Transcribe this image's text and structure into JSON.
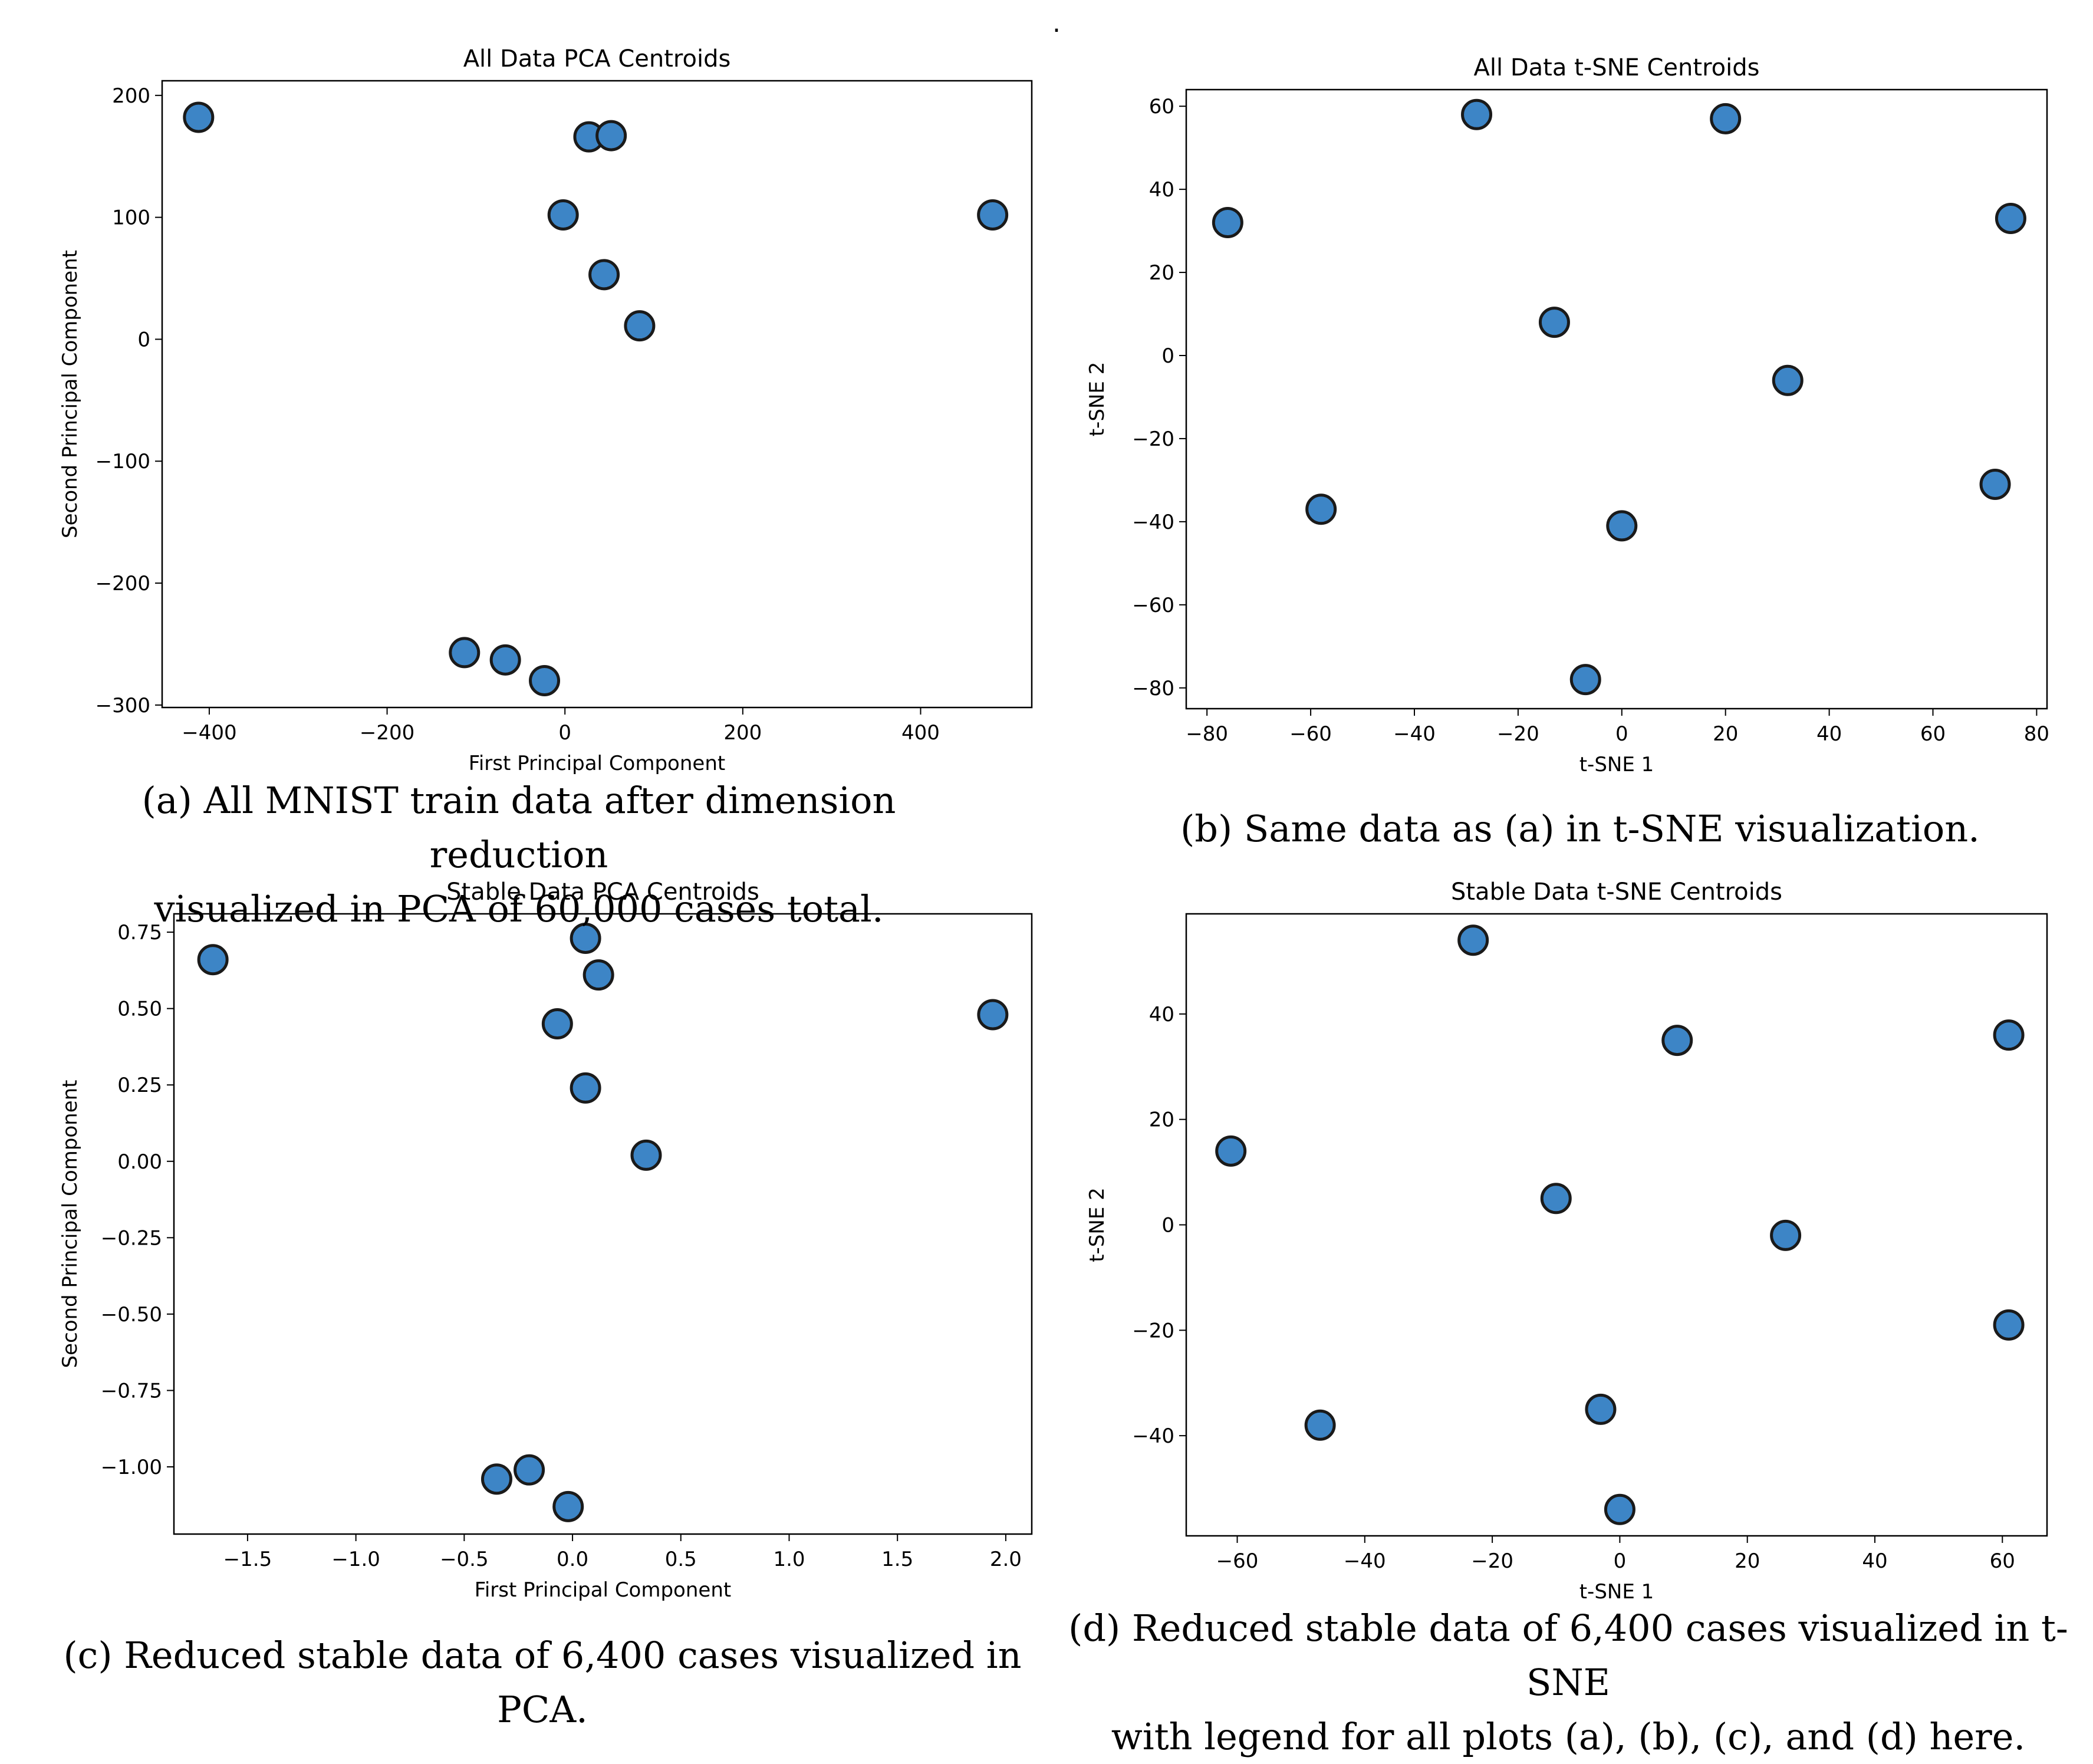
{
  "page_mark": ".",
  "chart_data": [
    {
      "id": "a",
      "type": "scatter",
      "title": "All Data PCA Centroids",
      "xlabel": "First Principal Component",
      "ylabel": "Second Principal Component",
      "xlim": [
        -453,
        525
      ],
      "ylim": [
        -302,
        212
      ],
      "xticks": [
        -400,
        -200,
        0,
        200,
        400
      ],
      "yticks": [
        -300,
        -200,
        -100,
        0,
        100,
        200
      ],
      "x": [
        -412,
        27,
        52,
        -2,
        481,
        44,
        84,
        -113,
        -67,
        -23
      ],
      "y": [
        182,
        166,
        167,
        102,
        102,
        53,
        11,
        -257,
        -263,
        -280
      ],
      "point_color": "#3d85c6",
      "caption": [
        "(a) All MNIST train data after dimension reduction",
        "visualized in PCA of 60,000 cases total."
      ]
    },
    {
      "id": "b",
      "type": "scatter",
      "title": "All Data t-SNE Centroids",
      "xlabel": "t-SNE 1",
      "ylabel": "t-SNE 2",
      "xlim": [
        -84,
        82
      ],
      "ylim": [
        -85,
        64
      ],
      "xticks": [
        -80,
        -60,
        -40,
        -20,
        0,
        20,
        40,
        60,
        80
      ],
      "yticks": [
        -80,
        -60,
        -40,
        -20,
        0,
        20,
        40,
        60
      ],
      "x": [
        -28,
        20,
        -76,
        75,
        -13,
        32,
        -58,
        72,
        0,
        -7
      ],
      "y": [
        58,
        57,
        32,
        33,
        8,
        -6,
        -37,
        -31,
        -41,
        -78
      ],
      "point_color": "#3d85c6",
      "caption": [
        "(b) Same data as (a) in t-SNE visualization."
      ]
    },
    {
      "id": "c",
      "type": "scatter",
      "title": "Stable Data PCA Centroids",
      "xlabel": "First Principal Component",
      "ylabel": "Second Principal Component",
      "xlim": [
        -1.84,
        2.12
      ],
      "ylim": [
        -1.22,
        0.81
      ],
      "xticks": [
        -1.5,
        -1.0,
        -0.5,
        0.0,
        0.5,
        1.0,
        1.5,
        2.0
      ],
      "xtick_labels": [
        "−1.5",
        "−1.0",
        "−0.5",
        "0.0",
        "0.5",
        "1.0",
        "1.5",
        "2.0"
      ],
      "yticks": [
        0.75,
        0.5,
        0.25,
        0.0,
        -0.25,
        -0.5,
        -0.75,
        -1.0
      ],
      "ytick_labels": [
        "0.75",
        "0.50",
        "0.25",
        "0.00",
        "−0.25",
        "−0.50",
        "−0.75",
        "−1.00"
      ],
      "x": [
        -1.66,
        0.06,
        0.12,
        -0.07,
        0.06,
        0.34,
        1.94,
        -0.35,
        -0.2,
        -0.02
      ],
      "y": [
        0.66,
        0.73,
        0.61,
        0.45,
        0.24,
        0.02,
        0.48,
        -1.04,
        -1.01,
        -1.13
      ],
      "point_color": "#3d85c6",
      "caption": [
        "(c) Reduced stable data of 6,400 cases visualized in PCA."
      ]
    },
    {
      "id": "d",
      "type": "scatter",
      "title": "Stable Data t-SNE Centroids",
      "xlabel": "t-SNE 1",
      "ylabel": "t-SNE 2",
      "xlim": [
        -68,
        67
      ],
      "ylim": [
        -59,
        59
      ],
      "xticks": [
        -60,
        -40,
        -20,
        0,
        20,
        40,
        60
      ],
      "yticks": [
        -40,
        -20,
        0,
        20,
        40
      ],
      "x": [
        -23,
        9,
        61,
        -61,
        -10,
        26,
        61,
        -47,
        -3,
        0
      ],
      "y": [
        54,
        35,
        36,
        14,
        5,
        -2,
        -19,
        -38,
        -35,
        -54
      ],
      "point_color": "#3d85c6",
      "caption": [
        "(d) Reduced stable data of 6,400 cases visualized in t-SNE",
        "with legend for all plots (a), (b), (c), and (d) here."
      ]
    }
  ]
}
